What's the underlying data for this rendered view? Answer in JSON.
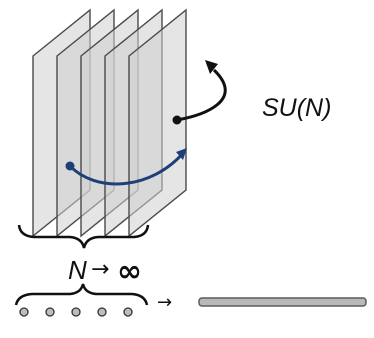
{
  "labels": {
    "gauge_group": "SU(N)",
    "n_symbol": "N",
    "limit_arrow": "→",
    "infinity": "∞",
    "map_arrow": "→"
  },
  "diagram": {
    "sheet_count": 5,
    "bead_count": 5,
    "colors": {
      "sheet_fill": "#cfcfcf",
      "sheet_stroke": "#4a4a4a",
      "curve_blue": "#1f3f78",
      "curve_black": "#111111",
      "bead_fill": "#bdbdbd",
      "rod_fill": "#b8b8b8"
    }
  }
}
